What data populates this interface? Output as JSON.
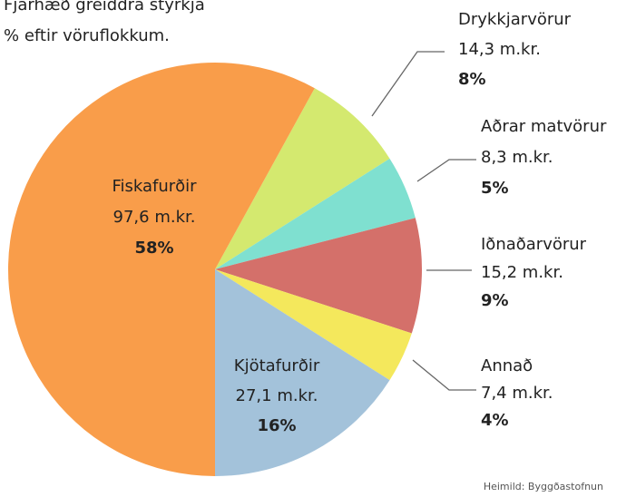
{
  "chart_data": {
    "type": "pie",
    "title": "Fjárhæð greiddra styrkja",
    "subtitle": "% eftir vöruflokkum.",
    "categories": [
      "Drykkjarvörur",
      "Aðrar matvörur",
      "Iðnaðarvörur",
      "Annað",
      "Kjötafurðir",
      "Fiskafurðir"
    ],
    "amount_labels": [
      "14,3 m.kr.",
      "8,3 m.kr.",
      "15,2 m.kr.",
      "7,4 m.kr.",
      "27,1 m.kr.",
      "97,6 m.kr."
    ],
    "values": [
      8,
      5,
      9,
      4,
      16,
      58
    ],
    "value_labels": [
      "8%",
      "5%",
      "9%",
      "4%",
      "16%",
      "58%"
    ],
    "colors": [
      "#d4e96f",
      "#7fe0d0",
      "#d4706a",
      "#f4e85c",
      "#a3c2da",
      "#f99d4a"
    ],
    "source": "Heimild: Byggðastofnun"
  }
}
